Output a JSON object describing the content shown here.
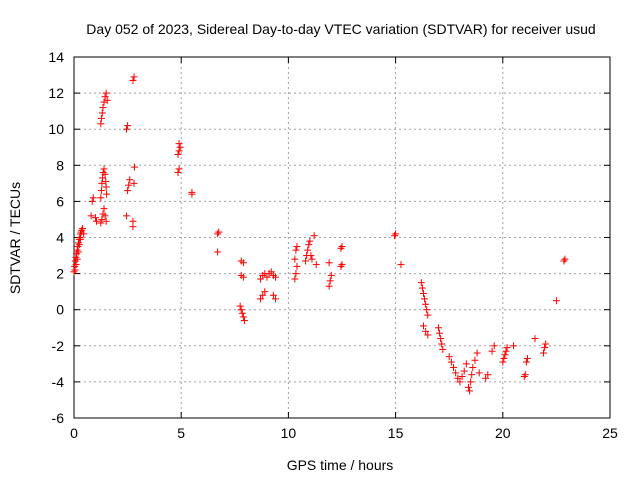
{
  "chart_data": {
    "type": "scatter",
    "title": "Day 052 of 2023, Sidereal Day-to-day VTEC variation (SDTVAR) for receiver usud",
    "xlabel": "GPS time / hours",
    "ylabel": "SDTVAR / TECUs",
    "xlim": [
      0,
      25
    ],
    "ylim": [
      -6,
      14
    ],
    "xticks": [
      0,
      5,
      10,
      15,
      20,
      25
    ],
    "yticks": [
      -6,
      -4,
      -2,
      0,
      2,
      4,
      6,
      8,
      10,
      12,
      14
    ],
    "grid": true,
    "legend": "none",
    "marker": "+",
    "color": "#ff0000",
    "series": [
      {
        "name": "usud",
        "points": [
          [
            0.0,
            2.1
          ],
          [
            0.03,
            2.4
          ],
          [
            0.06,
            2.7
          ],
          [
            0.09,
            2.9
          ],
          [
            0.12,
            3.1
          ],
          [
            0.15,
            3.3
          ],
          [
            0.18,
            3.5
          ],
          [
            0.21,
            3.7
          ],
          [
            0.24,
            3.9
          ],
          [
            0.27,
            4.0
          ],
          [
            0.3,
            4.2
          ],
          [
            0.33,
            4.3
          ],
          [
            0.36,
            4.4
          ],
          [
            0.4,
            4.5
          ],
          [
            0.45,
            4.2
          ],
          [
            0.05,
            2.2
          ],
          [
            0.1,
            2.5
          ],
          [
            0.15,
            2.8
          ],
          [
            0.2,
            3.2
          ],
          [
            0.25,
            3.6
          ],
          [
            0.3,
            3.9
          ],
          [
            0.8,
            5.2
          ],
          [
            0.85,
            6.0
          ],
          [
            0.9,
            6.2
          ],
          [
            1.0,
            5.1
          ],
          [
            1.05,
            4.9
          ],
          [
            1.25,
            4.8
          ],
          [
            1.3,
            5.0
          ],
          [
            1.35,
            5.3
          ],
          [
            1.4,
            5.6
          ],
          [
            1.45,
            5.2
          ],
          [
            1.5,
            4.9
          ],
          [
            1.25,
            6.2
          ],
          [
            1.28,
            6.6
          ],
          [
            1.3,
            7.0
          ],
          [
            1.33,
            7.3
          ],
          [
            1.36,
            7.6
          ],
          [
            1.4,
            7.8
          ],
          [
            1.45,
            7.5
          ],
          [
            1.48,
            7.1
          ],
          [
            1.5,
            6.8
          ],
          [
            1.52,
            6.4
          ],
          [
            1.25,
            10.3
          ],
          [
            1.28,
            10.6
          ],
          [
            1.32,
            10.9
          ],
          [
            1.35,
            11.2
          ],
          [
            1.4,
            11.5
          ],
          [
            1.45,
            11.8
          ],
          [
            1.5,
            12.0
          ],
          [
            1.55,
            11.6
          ],
          [
            2.45,
            5.2
          ],
          [
            2.5,
            6.6
          ],
          [
            2.55,
            6.9
          ],
          [
            2.6,
            7.2
          ],
          [
            2.45,
            10.0
          ],
          [
            2.5,
            10.2
          ],
          [
            2.75,
            4.6
          ],
          [
            2.75,
            4.9
          ],
          [
            2.8,
            7.0
          ],
          [
            2.82,
            7.9
          ],
          [
            2.75,
            12.7
          ],
          [
            2.8,
            12.9
          ],
          [
            4.85,
            7.6
          ],
          [
            4.9,
            7.8
          ],
          [
            4.85,
            8.6
          ],
          [
            4.9,
            8.8
          ],
          [
            4.95,
            9.0
          ],
          [
            4.9,
            9.2
          ],
          [
            5.5,
            6.4
          ],
          [
            5.5,
            6.5
          ],
          [
            6.7,
            3.2
          ],
          [
            6.7,
            4.2
          ],
          [
            6.75,
            4.3
          ],
          [
            7.8,
            2.7
          ],
          [
            7.9,
            2.6
          ],
          [
            7.8,
            1.9
          ],
          [
            7.9,
            1.8
          ],
          [
            7.75,
            0.2
          ],
          [
            7.8,
            0.0
          ],
          [
            7.85,
            -0.2
          ],
          [
            7.9,
            -0.4
          ],
          [
            7.95,
            -0.6
          ],
          [
            8.7,
            0.6
          ],
          [
            8.8,
            0.8
          ],
          [
            8.9,
            1.0
          ],
          [
            8.7,
            1.7
          ],
          [
            8.8,
            1.9
          ],
          [
            8.9,
            2.0
          ],
          [
            9.0,
            1.8
          ],
          [
            9.1,
            2.0
          ],
          [
            9.2,
            2.1
          ],
          [
            9.3,
            1.9
          ],
          [
            9.4,
            1.8
          ],
          [
            9.3,
            0.8
          ],
          [
            9.4,
            0.6
          ],
          [
            10.3,
            1.7
          ],
          [
            10.35,
            2.0
          ],
          [
            10.4,
            2.4
          ],
          [
            10.3,
            2.8
          ],
          [
            10.35,
            3.3
          ],
          [
            10.4,
            3.5
          ],
          [
            10.8,
            2.7
          ],
          [
            10.85,
            3.0
          ],
          [
            10.9,
            3.3
          ],
          [
            10.95,
            3.6
          ],
          [
            11.0,
            3.8
          ],
          [
            11.05,
            3.0
          ],
          [
            11.1,
            2.8
          ],
          [
            11.2,
            4.1
          ],
          [
            11.3,
            2.5
          ],
          [
            11.9,
            1.3
          ],
          [
            11.95,
            1.6
          ],
          [
            12.0,
            1.9
          ],
          [
            11.9,
            2.6
          ],
          [
            12.45,
            2.4
          ],
          [
            12.5,
            2.5
          ],
          [
            12.45,
            3.4
          ],
          [
            12.5,
            3.5
          ],
          [
            14.95,
            4.1
          ],
          [
            15.0,
            4.2
          ],
          [
            15.25,
            2.5
          ],
          [
            16.2,
            1.5
          ],
          [
            16.25,
            1.2
          ],
          [
            16.3,
            0.9
          ],
          [
            16.35,
            0.6
          ],
          [
            16.4,
            0.3
          ],
          [
            16.45,
            0.0
          ],
          [
            16.5,
            -0.3
          ],
          [
            16.3,
            -0.9
          ],
          [
            16.4,
            -1.2
          ],
          [
            16.5,
            -1.4
          ],
          [
            17.0,
            -1.0
          ],
          [
            17.05,
            -1.3
          ],
          [
            17.1,
            -1.6
          ],
          [
            17.15,
            -1.9
          ],
          [
            17.2,
            -2.2
          ],
          [
            17.5,
            -2.6
          ],
          [
            17.6,
            -2.9
          ],
          [
            17.7,
            -3.2
          ],
          [
            17.8,
            -3.5
          ],
          [
            17.9,
            -3.8
          ],
          [
            18.0,
            -4.0
          ],
          [
            18.1,
            -3.7
          ],
          [
            18.2,
            -3.4
          ],
          [
            18.3,
            -3.0
          ],
          [
            18.4,
            -4.3
          ],
          [
            18.45,
            -4.5
          ],
          [
            18.5,
            -4.0
          ],
          [
            18.55,
            -3.6
          ],
          [
            18.6,
            -3.2
          ],
          [
            18.7,
            -2.8
          ],
          [
            18.8,
            -2.4
          ],
          [
            18.9,
            -3.5
          ],
          [
            19.2,
            -3.8
          ],
          [
            19.3,
            -3.6
          ],
          [
            19.5,
            -2.3
          ],
          [
            19.6,
            -2.0
          ],
          [
            20.0,
            -2.9
          ],
          [
            20.05,
            -2.7
          ],
          [
            20.1,
            -2.5
          ],
          [
            20.15,
            -2.3
          ],
          [
            20.2,
            -2.1
          ],
          [
            20.5,
            -2.0
          ],
          [
            21.0,
            -3.7
          ],
          [
            21.05,
            -3.6
          ],
          [
            21.1,
            -2.9
          ],
          [
            21.15,
            -2.7
          ],
          [
            21.5,
            -1.6
          ],
          [
            21.9,
            -2.4
          ],
          [
            21.95,
            -2.1
          ],
          [
            22.0,
            -1.9
          ],
          [
            22.5,
            0.5
          ],
          [
            22.85,
            2.7
          ],
          [
            22.9,
            2.8
          ]
        ]
      }
    ]
  }
}
